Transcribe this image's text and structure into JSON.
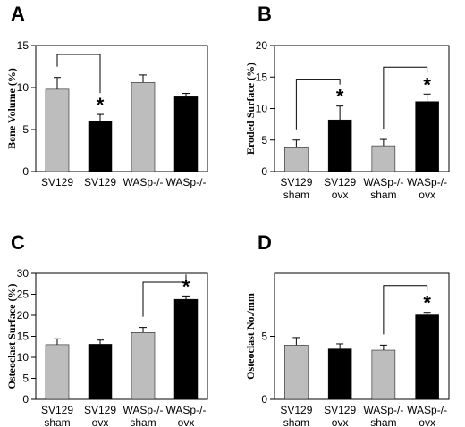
{
  "chart_data": [
    {
      "type": "bar",
      "panel": "A",
      "ylabel": "Bone Volume (%)",
      "ylim": [
        0,
        15
      ],
      "yticks": [
        0,
        5,
        10,
        15
      ],
      "categories": [
        [
          "SV129",
          ""
        ],
        [
          "SV129",
          ""
        ],
        [
          "WASp-/-",
          ""
        ],
        [
          "WASp-/-",
          ""
        ]
      ],
      "values": [
        9.8,
        6.0,
        10.6,
        8.9
      ],
      "errors": [
        1.4,
        0.8,
        0.9,
        0.4
      ],
      "colors": [
        "#bdbdbd",
        "#000000",
        "#bdbdbd",
        "#000000"
      ],
      "significance": [
        {
          "from": 0,
          "to": 1,
          "star_on": 1,
          "label": "*"
        }
      ]
    },
    {
      "type": "bar",
      "panel": "B",
      "ylabel": "Eroded Surface (%)",
      "ylim": [
        0,
        20
      ],
      "yticks": [
        0,
        5,
        10,
        15,
        20
      ],
      "categories": [
        [
          "SV129",
          "sham"
        ],
        [
          "SV129",
          "ovx"
        ],
        [
          "WASp-/-",
          "sham"
        ],
        [
          "WASp-/-",
          "ovx"
        ]
      ],
      "values": [
        3.8,
        8.2,
        4.1,
        11.1
      ],
      "errors": [
        1.2,
        2.2,
        1.0,
        1.2
      ],
      "colors": [
        "#bdbdbd",
        "#000000",
        "#bdbdbd",
        "#000000"
      ],
      "significance": [
        {
          "from": 0,
          "to": 1,
          "star_on": 1,
          "label": "*"
        },
        {
          "from": 2,
          "to": 3,
          "star_on": 3,
          "label": "*"
        }
      ]
    },
    {
      "type": "bar",
      "panel": "C",
      "ylabel": "Osteoclast Surface (%)",
      "ylim": [
        0,
        30
      ],
      "yticks": [
        0,
        5,
        10,
        15,
        20,
        25,
        30
      ],
      "categories": [
        [
          "SV129",
          "sham"
        ],
        [
          "SV129",
          "ovx"
        ],
        [
          "WASp-/-",
          "sham"
        ],
        [
          "WASp-/-",
          "ovx"
        ]
      ],
      "values": [
        13.0,
        13.1,
        15.9,
        23.8
      ],
      "errors": [
        1.4,
        1.0,
        1.2,
        0.8
      ],
      "colors": [
        "#bdbdbd",
        "#000000",
        "#bdbdbd",
        "#000000"
      ],
      "significance": [
        {
          "from": 2,
          "to": 3,
          "star_on": 3,
          "label": "*"
        }
      ]
    },
    {
      "type": "bar",
      "panel": "D",
      "ylabel": "Osteoclast No./mm",
      "ylim": [
        0,
        10
      ],
      "yticks": [
        0,
        5
      ],
      "categories": [
        [
          "SV129",
          "sham"
        ],
        [
          "SV129",
          "ovx"
        ],
        [
          "WASp-/-",
          "sham"
        ],
        [
          "WASp-/-",
          "ovx"
        ]
      ],
      "values": [
        4.3,
        4.0,
        3.9,
        6.7
      ],
      "errors": [
        0.6,
        0.4,
        0.4,
        0.2
      ],
      "colors": [
        "#bdbdbd",
        "#000000",
        "#bdbdbd",
        "#000000"
      ],
      "significance": [
        {
          "from": 2,
          "to": 3,
          "star_on": 3,
          "label": "*"
        }
      ]
    }
  ]
}
